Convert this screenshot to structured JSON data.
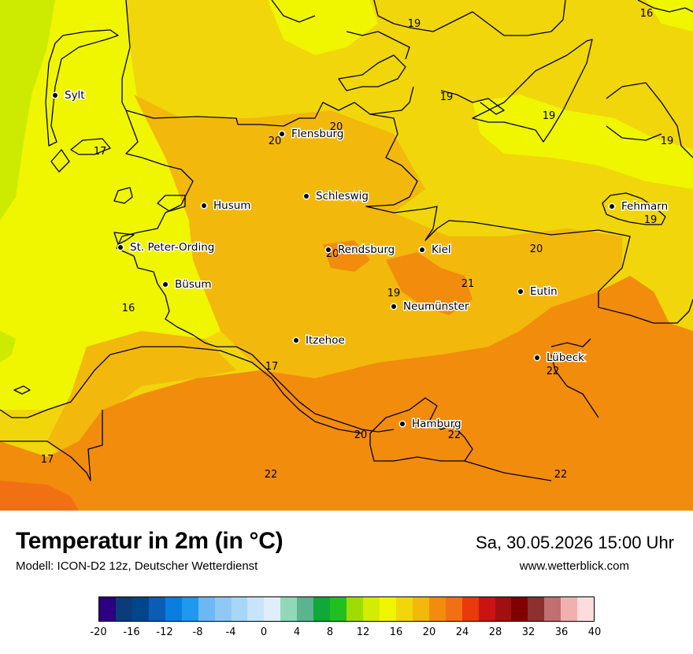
{
  "map": {
    "cities": [
      {
        "name": "Sylt"
      },
      {
        "name": "Flensburg"
      },
      {
        "name": "Schleswig"
      },
      {
        "name": "Husum"
      },
      {
        "name": "St. Peter-Ording"
      },
      {
        "name": "Rendsburg"
      },
      {
        "name": "Kiel"
      },
      {
        "name": "Büsum"
      },
      {
        "name": "Neumünster"
      },
      {
        "name": "Eutin"
      },
      {
        "name": "Fehmarn"
      },
      {
        "name": "Itzehoe"
      },
      {
        "name": "Lübeck"
      },
      {
        "name": "Hamburg"
      }
    ],
    "values": [
      "19",
      "16",
      "19",
      "19",
      "19",
      "20",
      "20",
      "17",
      "19",
      "20",
      "20",
      "21",
      "19",
      "16",
      "17",
      "22",
      "20",
      "22",
      "17",
      "22",
      "22",
      "22"
    ],
    "colors": {
      "c16": "#f0f500",
      "c18": "#f0d60a",
      "c20": "#f2b80c",
      "c22": "#f28c0c",
      "c24": "#f27014",
      "c12": "#cceb00",
      "border": "#000000"
    }
  },
  "footer": {
    "title": "Temperatur in 2m (in °C)",
    "subtitle": "Modell: ICON-D2 12z, Deutscher Wetterdienst",
    "datetime": "Sa, 30.05.2026 15:00 Uhr",
    "website": "www.wetterblick.com"
  },
  "scale": {
    "colors": [
      "#2c007f",
      "#0c3b7a",
      "#00468c",
      "#0a5cb4",
      "#0a7ee0",
      "#1f98f0",
      "#6cb8f5",
      "#8fc8f5",
      "#a8d6f7",
      "#c8e4fa",
      "#e0eefc",
      "#90d8b8",
      "#5ab490",
      "#10a838",
      "#20c020",
      "#a0dc00",
      "#d4ec00",
      "#f0f500",
      "#f0d60a",
      "#f2b80c",
      "#f28c0c",
      "#f27014",
      "#e83a0a",
      "#c81414",
      "#a01010",
      "#800000",
      "#8c3030",
      "#c07070",
      "#f0b0b0",
      "#fcdcdc"
    ],
    "ticks": [
      "-20",
      "-16",
      "-12",
      "-8",
      "-4",
      "0",
      "4",
      "8",
      "12",
      "16",
      "20",
      "24",
      "28",
      "32",
      "36",
      "40"
    ]
  }
}
